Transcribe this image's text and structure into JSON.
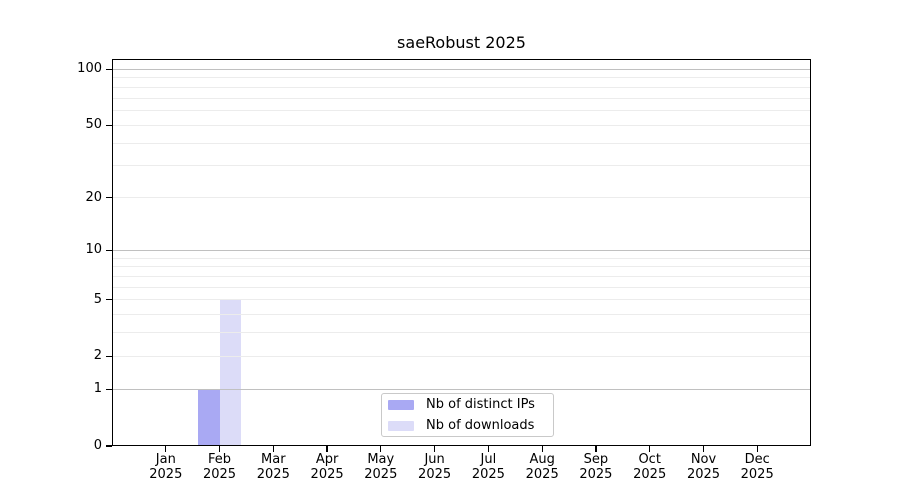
{
  "chart_data": {
    "type": "bar",
    "title": "saeRobust 2025",
    "year": "2025",
    "categories": [
      "Jan",
      "Feb",
      "Mar",
      "Apr",
      "May",
      "Jun",
      "Jul",
      "Aug",
      "Sep",
      "Oct",
      "Nov",
      "Dec"
    ],
    "series": [
      {
        "name": "Nb of distinct IPs",
        "color": "#a9a9f3",
        "values": [
          0,
          1,
          0,
          0,
          0,
          0,
          0,
          0,
          0,
          0,
          0,
          0
        ]
      },
      {
        "name": "Nb of downloads",
        "color": "#dcdcf8",
        "values": [
          0,
          5,
          0,
          0,
          0,
          0,
          0,
          0,
          0,
          0,
          0,
          0
        ]
      }
    ],
    "y_axis": {
      "scale": "log1p",
      "ticks": [
        0,
        1,
        2,
        5,
        10,
        20,
        50,
        100
      ],
      "major_gridlines": [
        1,
        10,
        100
      ],
      "minor_gridlines": [
        2,
        3,
        4,
        5,
        6,
        7,
        8,
        9,
        20,
        30,
        40,
        50,
        60,
        70,
        80,
        90
      ],
      "range_max": 113
    },
    "legend": {
      "position": "bottom-center",
      "entries": [
        "Nb of distinct IPs",
        "Nb of downloads"
      ]
    },
    "grid": "horizontal",
    "colors": {
      "major_grid": "#c0c0c0",
      "minor_grid": "#ececec",
      "axis": "#000000",
      "background": "#ffffff"
    }
  }
}
